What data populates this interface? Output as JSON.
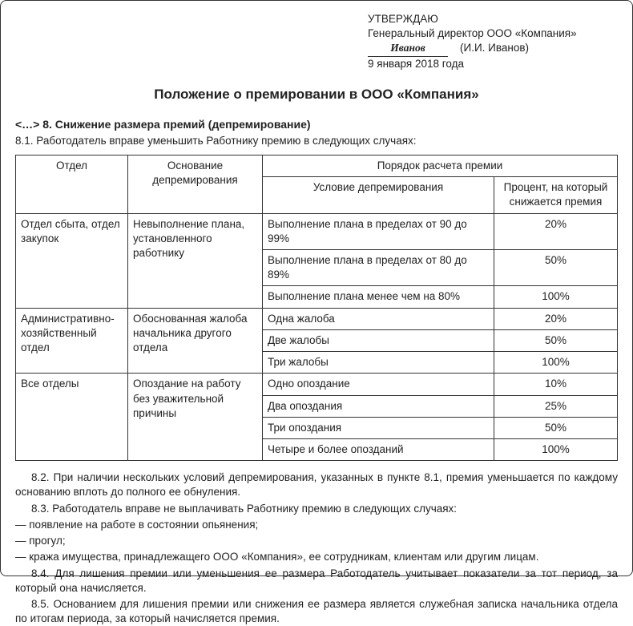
{
  "approval": {
    "approve_label": "УТВЕРЖДАЮ",
    "position": "Генеральный директор ООО «Компания»",
    "signature": "Иванов",
    "name_in_brackets": "(И.И. Иванов)",
    "date": "9 января 2018 года"
  },
  "title": "Положение о премировании в ООО «Компания»",
  "section": {
    "heading": "<…> 8. Снижение размера премий (депремирование)",
    "clause81": "8.1. Работодатель вправе уменьшить Работнику премию в следующих случаях:"
  },
  "table": {
    "head": {
      "dept": "Отдел",
      "reason": "Основание депремирования",
      "calc_group": "Порядок расчета премии",
      "condition": "Условие депремирования",
      "percent": "Процент, на который снижается премия"
    },
    "groups": [
      {
        "dept": "Отдел сбыта, отдел закупок",
        "reason": "Невыполнение плана, установленного работнику",
        "rows": [
          {
            "condition": "Выполнение плана в пределах от 90 до 99%",
            "percent": "20%"
          },
          {
            "condition": "Выполнение плана в пределах от 80 до 89%",
            "percent": "50%"
          },
          {
            "condition": "Выполнение плана менее чем на 80%",
            "percent": "100%"
          }
        ]
      },
      {
        "dept": "Административно-хозяйственный отдел",
        "reason": "Обоснованная жалоба начальника другого отдела",
        "rows": [
          {
            "condition": "Одна жалоба",
            "percent": "20%"
          },
          {
            "condition": "Две жалобы",
            "percent": "50%"
          },
          {
            "condition": "Три жалобы",
            "percent": "100%"
          }
        ]
      },
      {
        "dept": "Все отделы",
        "reason": "Опоздание на работу без уважительной причины",
        "rows": [
          {
            "condition": "Одно опоздание",
            "percent": "10%"
          },
          {
            "condition": "Два опоздания",
            "percent": "25%"
          },
          {
            "condition": "Три опоздания",
            "percent": "50%"
          },
          {
            "condition": "Четыре и более опозданий",
            "percent": "100%"
          }
        ]
      }
    ]
  },
  "body": {
    "p82": "8.2. При наличии нескольких условий депремирования, указанных в пункте 8.1, премия уменьшается по каждому основанию вплоть до полного ее обнуления.",
    "p83": "8.3. Работодатель вправе не выплачивать Работнику премию в следующих случаях:",
    "bullets": [
      "— появление на работе в состоянии опьянения;",
      "— прогул;",
      "— кража имущества, принадлежащего ООО «Компания», ее сотрудникам, клиентам или другим лицам."
    ],
    "p84": "8.4. Для лишения премии или уменьшения ее размера Работодатель учитывает показатели за тот период, за который она начисляется.",
    "p85": "8.5. Основанием для лишения премии или снижения ее размера является служебная записка начальника отдела по итогам периода, за который начисляется премия."
  }
}
